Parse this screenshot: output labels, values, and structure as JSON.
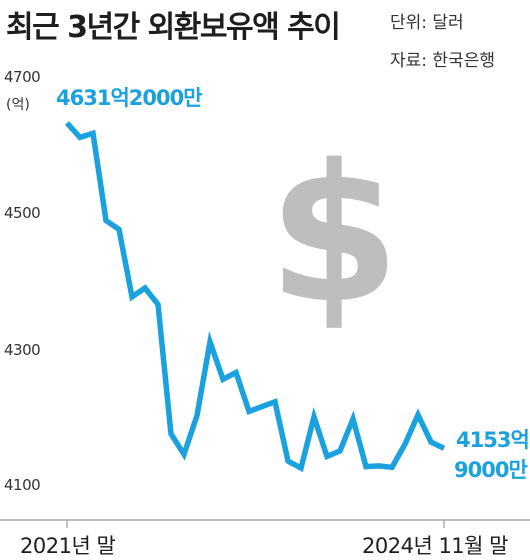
{
  "title": "최근 3년간 외환보유액 추이",
  "unit": "단위: 달러",
  "source": "자료: 한국은행",
  "colors": {
    "line": "#1ba2de",
    "callout": "#1ba2de",
    "axis": "#999999",
    "dollar": "#bebebe"
  },
  "decoration": {
    "dollar_sign": "$"
  },
  "chart_data": {
    "type": "line",
    "ylabel": "(억)",
    "yticks": [
      "4700",
      "4500",
      "4300",
      "4100"
    ],
    "ytick_values": [
      4700,
      4500,
      4300,
      4100
    ],
    "ylim": [
      4100,
      4700
    ],
    "xticks": [
      "2021년 말",
      "2024년 11월 말"
    ],
    "grid": false,
    "series": [
      {
        "values": [
          4631,
          4610,
          4616,
          4488,
          4475,
          4376,
          4389,
          4365,
          4175,
          4145,
          4202,
          4310,
          4255,
          4265,
          4208,
          4215,
          4222,
          4135,
          4125,
          4200,
          4142,
          4150,
          4197,
          4127,
          4128,
          4126,
          4160,
          4203,
          4163,
          4154
        ]
      }
    ],
    "annotations": [
      {
        "label": "4631억2000만",
        "value": 4631.2,
        "point": "first"
      },
      {
        "label_lines": [
          "4153억",
          "9000만"
        ],
        "value": 4153.9,
        "point": "last"
      }
    ]
  }
}
